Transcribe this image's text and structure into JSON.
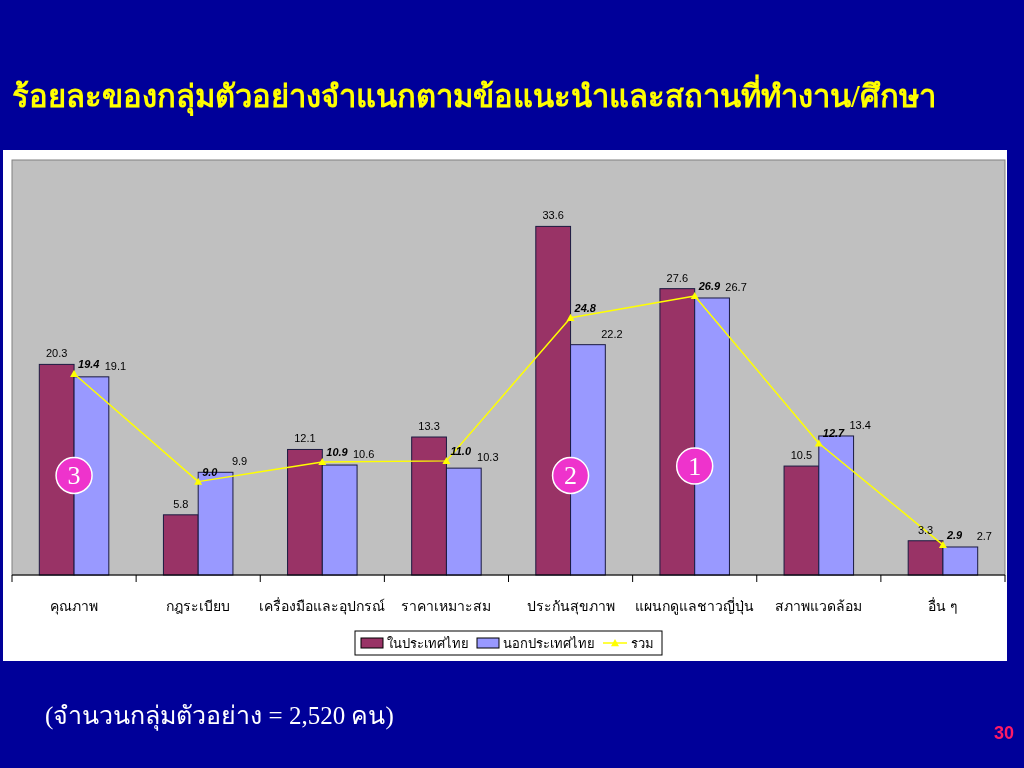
{
  "chart_data": {
    "type": "bar",
    "title": "ร้อยละของกลุ่มตัวอย่างจำแนกตามข้อแนะนำและสถานที่ทำงาน/ศึกษา",
    "categories": [
      "คุณภาพ",
      "กฎระเบียบ",
      "เครื่องมือและอุปกรณ์",
      "ราคาเหมาะสม",
      "ประกันสุขภาพ",
      "แผนกดูแลชาวญี่ปุ่น",
      "สภาพแวดล้อม",
      "อื่น ๆ"
    ],
    "series": [
      {
        "name": "ในประเทศไทย",
        "color": "#993366",
        "values": [
          20.3,
          5.8,
          12.1,
          13.3,
          33.6,
          27.6,
          10.5,
          3.3
        ],
        "value_labels": [
          "20.3",
          "5.8",
          "12.1",
          "13.3",
          "33.6",
          "27.6",
          "10.5",
          "3.3"
        ]
      },
      {
        "name": "นอกประเทศไทย",
        "color": "#9999ff",
        "values": [
          19.1,
          9.9,
          10.6,
          10.3,
          22.2,
          26.7,
          13.4,
          2.7
        ],
        "value_labels": [
          "19.1",
          "9.9",
          "10.6",
          "10.3",
          "22.2",
          "26.7",
          "13.4",
          "2.7"
        ]
      },
      {
        "name": "รวม",
        "type": "line",
        "color": "#ffff00",
        "values": [
          19.4,
          9.0,
          10.9,
          11.0,
          24.8,
          26.9,
          12.7,
          2.9
        ],
        "value_labels": [
          "19.4",
          "9.0",
          "10.9",
          "11.0",
          "24.8",
          "26.9",
          "12.7",
          "2.9"
        ]
      }
    ],
    "ylim": [
      0,
      40
    ],
    "legend": "bottom",
    "marker": "triangle",
    "line_style": "solid",
    "annotations": [
      {
        "text": "3",
        "x": "คุณภาพ",
        "y": 9.6
      },
      {
        "text": "2",
        "x": "ประกันสุขภาพ",
        "y": 9.6
      },
      {
        "text": "1",
        "x": "แผนกดูแลชาวญี่ปุ่น",
        "y": 10.5
      },
      "(จำนวนกลุ่มตัวอย่าง = 2,520 คน)",
      "30"
    ]
  }
}
